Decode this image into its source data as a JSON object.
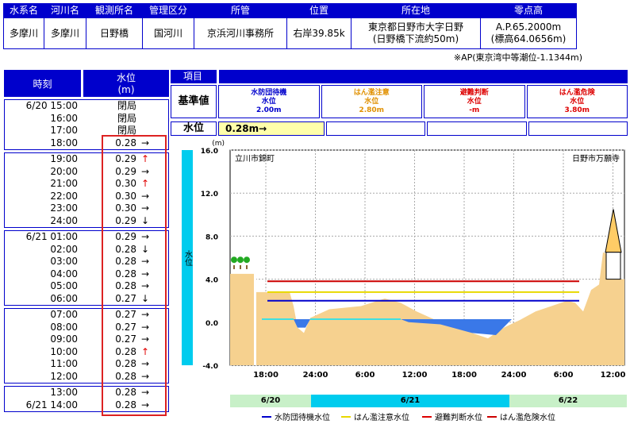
{
  "station": {
    "headers": [
      "水系名",
      "河川名",
      "観測所名",
      "管理区分",
      "所管",
      "位置",
      "所在地",
      "零点高"
    ],
    "values": [
      "多摩川",
      "多摩川",
      "日野橋",
      "国河川",
      "京浜河川事務所",
      "右岸39.85k",
      "東京都日野市大字日野\n(日野橋下流約50m)",
      "A.P.65.2000m\n(標高64.0656m)"
    ],
    "note": "※AP(東京湾中等潮位-1.1344m)"
  },
  "table": {
    "time_header": "時刻",
    "level_header": "水位\n(m)",
    "blocks": [
      [
        {
          "t": "6/20 15:00",
          "v": "閉局",
          "a": ""
        },
        {
          "t": "16:00",
          "v": "閉局",
          "a": ""
        },
        {
          "t": "17:00",
          "v": "閉局",
          "a": ""
        },
        {
          "t": "18:00",
          "v": "0.28",
          "a": "→"
        }
      ],
      [
        {
          "t": "19:00",
          "v": "0.29",
          "a": "↑"
        },
        {
          "t": "20:00",
          "v": "0.29",
          "a": "→"
        },
        {
          "t": "21:00",
          "v": "0.30",
          "a": "↑"
        },
        {
          "t": "22:00",
          "v": "0.30",
          "a": "→"
        },
        {
          "t": "23:00",
          "v": "0.30",
          "a": "→"
        },
        {
          "t": "24:00",
          "v": "0.29",
          "a": "↓"
        }
      ],
      [
        {
          "t": "6/21 01:00",
          "v": "0.29",
          "a": "→"
        },
        {
          "t": "02:00",
          "v": "0.28",
          "a": "↓"
        },
        {
          "t": "03:00",
          "v": "0.28",
          "a": "→"
        },
        {
          "t": "04:00",
          "v": "0.28",
          "a": "→"
        },
        {
          "t": "05:00",
          "v": "0.28",
          "a": "→"
        },
        {
          "t": "06:00",
          "v": "0.27",
          "a": "↓"
        }
      ],
      [
        {
          "t": "07:00",
          "v": "0.27",
          "a": "→"
        },
        {
          "t": "08:00",
          "v": "0.27",
          "a": "→"
        },
        {
          "t": "09:00",
          "v": "0.27",
          "a": "→"
        },
        {
          "t": "10:00",
          "v": "0.28",
          "a": "↑"
        },
        {
          "t": "11:00",
          "v": "0.28",
          "a": "→"
        },
        {
          "t": "12:00",
          "v": "0.28",
          "a": "→"
        }
      ],
      [
        {
          "t": "13:00",
          "v": "0.28",
          "a": "→"
        },
        {
          "t": "6/21 14:00",
          "v": "0.28",
          "a": "→"
        }
      ]
    ]
  },
  "criteria": {
    "item_label": "項目",
    "standard_label": "基準値",
    "level_label": "水位",
    "current": "0.28m→",
    "levels": [
      {
        "name": "水防団待機",
        "sub": "水位",
        "value": "2.00m",
        "color": "#0000cc"
      },
      {
        "name": "はん濫注意",
        "sub": "水位",
        "value": "2.80m",
        "color": "#e09000"
      },
      {
        "name": "避難判断",
        "sub": "水位",
        "value": "-m",
        "color": "#dd0000"
      },
      {
        "name": "はん濫危険",
        "sub": "水位",
        "value": "3.80m",
        "color": "#dd0000"
      }
    ]
  },
  "chart_data": {
    "type": "area",
    "unit_label": "(m)",
    "y_ticks": [
      "16.0",
      "12.0",
      "8.0",
      "4.0",
      "0.0",
      "-4.0"
    ],
    "ylim": [
      -4,
      16
    ],
    "x_ticks": [
      "18:00",
      "24:00",
      "6:00",
      "12:00",
      "18:00",
      "24:00",
      "6:00",
      "12:00"
    ],
    "left_bank_label": "立川市錦町",
    "right_bank_label": "日野市万願寺",
    "gauge_label": "水位",
    "current_level": 0.28,
    "thresholds": [
      {
        "name": "水防団待機水位",
        "value": 2.0,
        "color": "#0000cc"
      },
      {
        "name": "はん濫注意水位",
        "value": 2.8,
        "color": "#e8d800"
      },
      {
        "name": "避難判断水位",
        "value": null,
        "color": "#dd0000"
      },
      {
        "name": "はん濫危険水位",
        "value": 3.8,
        "color": "#cc0000"
      }
    ],
    "days": [
      {
        "label": "6/20",
        "color": "#c8f0c8"
      },
      {
        "label": "6/21",
        "color": "#00ccee"
      },
      {
        "label": "6/22",
        "color": "#c8f0c8"
      }
    ]
  },
  "legend": [
    {
      "label": "水防団待機水位",
      "color": "#0000cc",
      "dash": false
    },
    {
      "label": "はん濫注意水位",
      "color": "#e8d800",
      "dash": false
    },
    {
      "label": "避難判断水位",
      "color": "#dd0000",
      "dash": true
    },
    {
      "label": "はん濫危険水位",
      "color": "#cc0000",
      "dash": false
    }
  ]
}
